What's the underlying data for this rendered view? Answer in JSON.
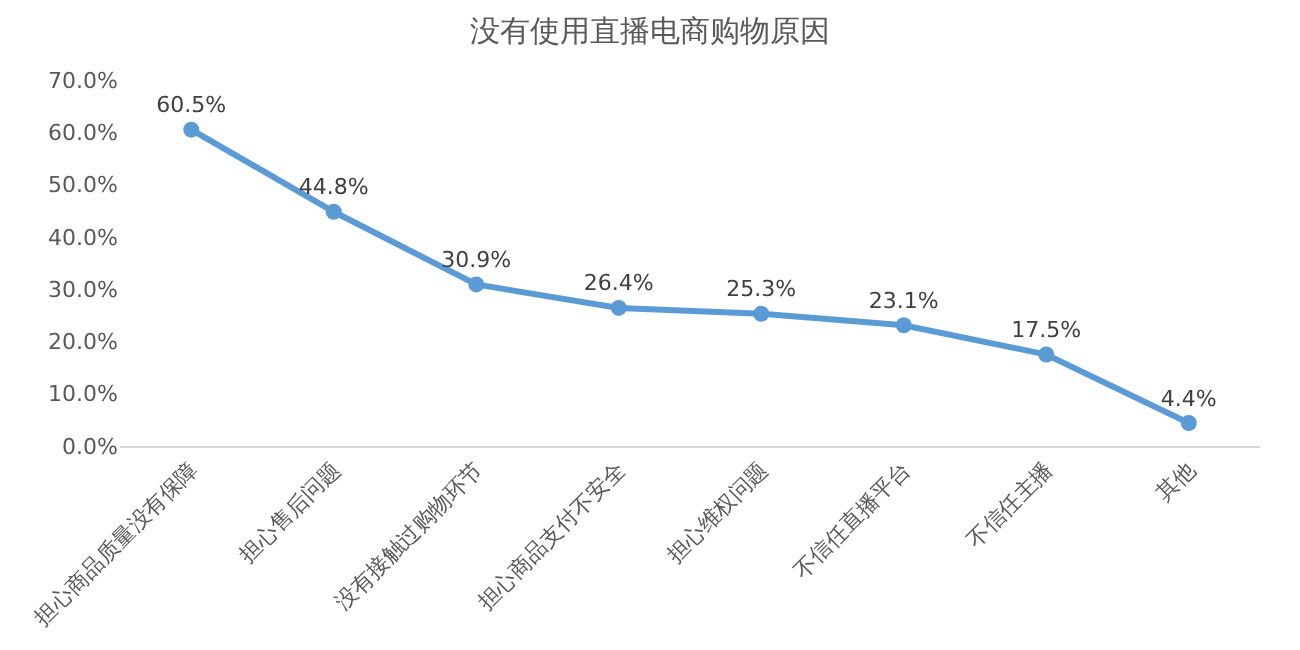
{
  "chart_data": {
    "type": "line",
    "title": "没有使用直播电商购物原因",
    "categories": [
      "担心商品质量没有保障",
      "担心售后问题",
      "没有接触过购物环节",
      "担心商品支付不安全",
      "担心维权问题",
      "不信任直播平台",
      "不信任主播",
      "其他"
    ],
    "series": [
      {
        "color": "#5b9bd5",
        "values": [
          60.5,
          44.8,
          30.9,
          26.4,
          25.3,
          23.1,
          17.5,
          4.4
        ],
        "value_labels": [
          "60.5%",
          "44.8%",
          "30.9%",
          "26.4%",
          "25.3%",
          "23.1%",
          "17.5%",
          "4.4%"
        ]
      }
    ],
    "ylim": [
      0,
      70
    ],
    "yticks": [
      {
        "value": 0,
        "label": "0.0%"
      },
      {
        "value": 10,
        "label": "10.0%"
      },
      {
        "value": 20,
        "label": "20.0%"
      },
      {
        "value": 30,
        "label": "30.0%"
      },
      {
        "value": 40,
        "label": "40.0%"
      },
      {
        "value": 50,
        "label": "50.0%"
      },
      {
        "value": 60,
        "label": "60.0%"
      },
      {
        "value": 70,
        "label": "70.0%"
      }
    ],
    "grid": false,
    "marker": "circle",
    "line_style": "solid"
  }
}
